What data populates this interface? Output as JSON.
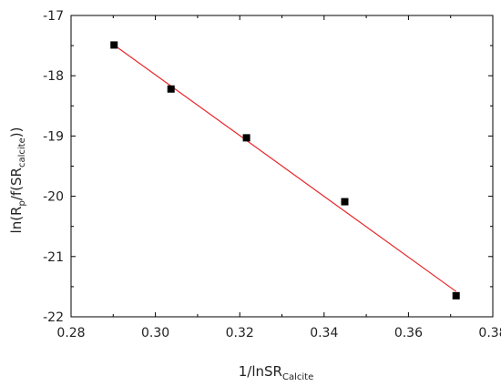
{
  "chart_data": {
    "type": "scatter",
    "title": "",
    "xlabel": {
      "base": "1/lnSR",
      "sub": "Calcite"
    },
    "ylabel": {
      "prefix": "ln(R",
      "sub1": "p",
      "mid": "/f(SR",
      "sub2": "calcite",
      "suffix": "))"
    },
    "xlim": [
      0.28,
      0.38
    ],
    "ylim": [
      -22,
      -17
    ],
    "xticks": [
      0.28,
      0.3,
      0.32,
      0.34,
      0.36,
      0.38
    ],
    "xtick_labels": [
      "0.28",
      "0.30",
      "0.32",
      "0.34",
      "0.36",
      "0.38"
    ],
    "yticks": [
      -22,
      -21,
      -20,
      -19,
      -18,
      -17
    ],
    "ytick_labels": [
      "-22",
      "-21",
      "-20",
      "-19",
      "-18",
      "-17"
    ],
    "grid": false,
    "legend": false,
    "series": [
      {
        "kind": "points",
        "marker": "square",
        "color": "#000000",
        "x": [
          0.2902,
          0.3037,
          0.3216,
          0.3449,
          0.3713
        ],
        "y": [
          -17.49,
          -18.22,
          -19.03,
          -20.09,
          -21.65
        ]
      },
      {
        "kind": "fit-line",
        "color": "#e8262a",
        "x": [
          0.2902,
          0.3713
        ],
        "y": [
          -17.49,
          -21.58
        ]
      }
    ]
  }
}
